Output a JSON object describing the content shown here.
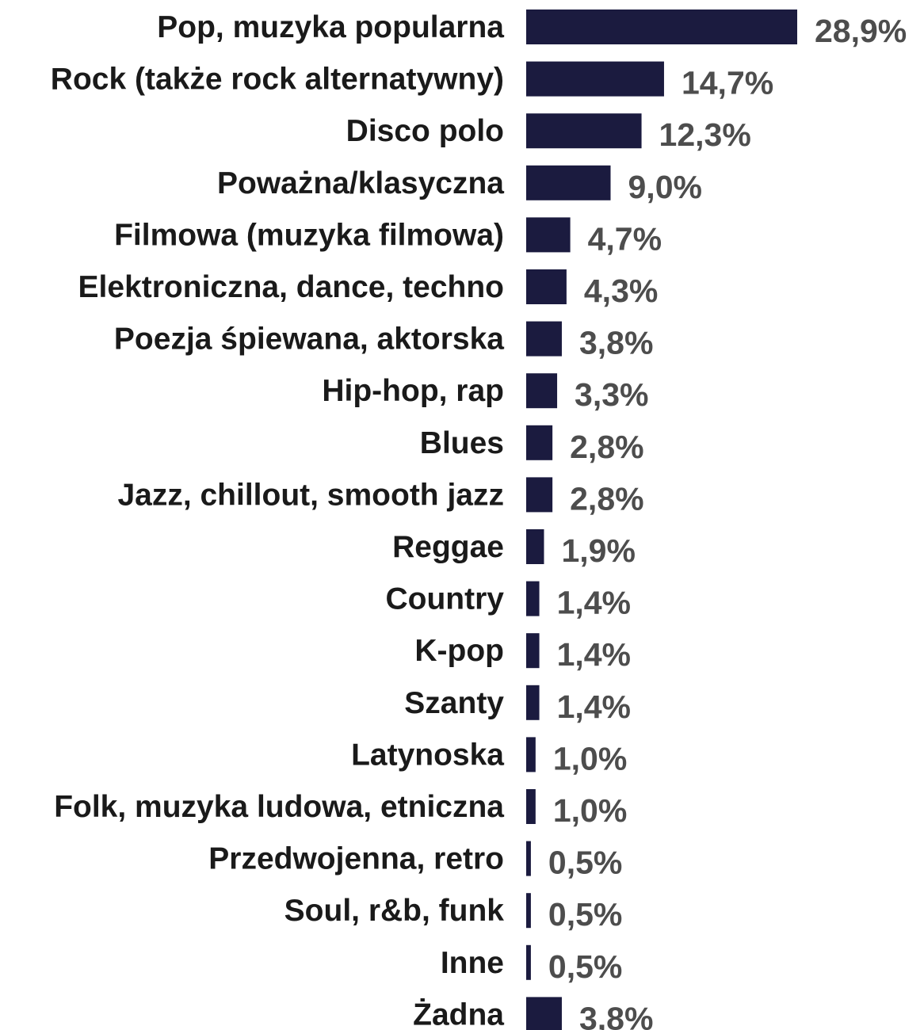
{
  "chart_data": {
    "type": "bar",
    "orientation": "horizontal",
    "categories": [
      "Pop, muzyka popularna",
      "Rock (także rock alternatywny)",
      "Disco polo",
      "Poważna/klasyczna",
      "Filmowa (muzyka filmowa)",
      "Elektroniczna, dance, techno",
      "Poezja śpiewana, aktorska",
      "Hip-hop, rap",
      "Blues",
      "Jazz, chillout, smooth jazz",
      "Reggae",
      "Country",
      "K-pop",
      "Szanty",
      "Latynoska",
      "Folk, muzyka ludowa, etniczna",
      "Przedwojenna, retro",
      "Soul, r&b, funk",
      "Inne",
      "Żadna"
    ],
    "values": [
      28.9,
      14.7,
      12.3,
      9.0,
      4.7,
      4.3,
      3.8,
      3.3,
      2.8,
      2.8,
      1.9,
      1.4,
      1.4,
      1.4,
      1.0,
      1.0,
      0.5,
      0.5,
      0.5,
      3.8
    ],
    "value_labels": [
      "28,9%",
      "14,7%",
      "12,3%",
      "9,0%",
      "4,7%",
      "4,3%",
      "3,8%",
      "3,3%",
      "2,8%",
      "2,8%",
      "1,9%",
      "1,4%",
      "1,4%",
      "1,4%",
      "1,0%",
      "1,0%",
      "0,5%",
      "0,5%",
      "0,5%",
      "3,8%"
    ],
    "xlim": [
      0,
      28.9
    ],
    "grid": false,
    "legend": "none",
    "bar_color": "#1b1b3f",
    "label_color": "#1a1a1a",
    "value_color": "#4d4d4d"
  }
}
